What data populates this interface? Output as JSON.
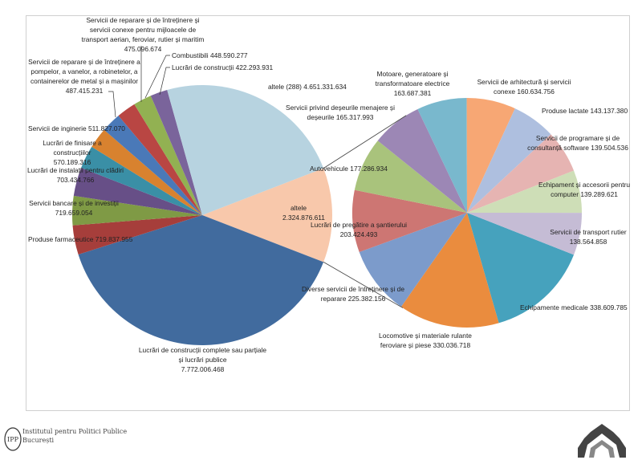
{
  "chart_data": {
    "type": "pie-of-pie",
    "primary": {
      "slices": [
        {
          "label": "altele",
          "value": 2324876611,
          "color": "#f8c8ab"
        },
        {
          "label": "Lucrări de construcții complete sau parțiale și lucrări publice",
          "value": 7772006468,
          "color": "#416b9e"
        },
        {
          "label": "Produse farmaceutice",
          "value": 719837955,
          "color": "#a63e3b"
        },
        {
          "label": "Servicii bancare și de investiții",
          "value": 719659054,
          "color": "#7f9a45"
        },
        {
          "label": "Lucrări de instalații pentru clădiri",
          "value": 703434766,
          "color": "#674f87"
        },
        {
          "label": "Lucrări de finisare a construcțiilor",
          "value": 570189316,
          "color": "#3a8fa6"
        },
        {
          "label": "Servicii de inginerie",
          "value": 511827070,
          "color": "#d8822f"
        },
        {
          "label": "Servicii de reparare și de întreținere a pompelor, a vanelor, a robinetelor, a containerelor de metal și a mașinilor",
          "value": 487415231,
          "color": "#4a79b8"
        },
        {
          "label": "Servicii de reparare și de întreținere și servicii conexe pentru mijloacele de transport aerian, feroviar, rutier și maritim",
          "value": 475096674,
          "color": "#b94643"
        },
        {
          "label": "Combustibili",
          "value": 448590277,
          "color": "#92b152"
        },
        {
          "label": "Lucrări de construcții",
          "value": 422293931,
          "color": "#7a649b"
        },
        {
          "label": "altele (288)",
          "value": 4651331634,
          "color": "#b7d3e0"
        }
      ]
    },
    "secondary": {
      "slices": [
        {
          "label": "Echipamente medicale",
          "value": 338609785,
          "color": "#46a2bd"
        },
        {
          "label": "Locomotive și materiale rulante feroviare și piese",
          "value": 330036718,
          "color": "#ea8c3e"
        },
        {
          "label": "Diverse servicii de întreținere și de reparare",
          "value": 225382156,
          "color": "#7c9bcb"
        },
        {
          "label": "Lucrări de pregătire a șantierului",
          "value": 203424493,
          "color": "#cd7673"
        },
        {
          "label": "Autovehicule",
          "value": 177286934,
          "color": "#a9c37c"
        },
        {
          "label": "Servicii privind deșeurile menajere și deșeurile",
          "value": 165317993,
          "color": "#9c87b5"
        },
        {
          "label": "Motoare, generatoare și transformatoare electrice",
          "value": 163687381,
          "color": "#79b8cd"
        },
        {
          "label": "Servicii de arhitectură și servicii conexe",
          "value": 160634756,
          "color": "#f7a774"
        },
        {
          "label": "Produse lactate",
          "value": 143137380,
          "color": "#aebfdf"
        },
        {
          "label": "Servicii de programare și de consultanță software",
          "value": 139504536,
          "color": "#e6b4b2"
        },
        {
          "label": "Echipament și accesorii pentru computer",
          "value": 139289621,
          "color": "#cedeb7"
        },
        {
          "label": "Servicii de transport rutier",
          "value": 138564858,
          "color": "#c5bcd5"
        }
      ]
    },
    "data_labels": "category and value",
    "legend": "none"
  },
  "footer": {
    "logo_text": "IPP",
    "institution_line1": "Institutul pentru Politici Publice",
    "institution_line2": "București"
  }
}
